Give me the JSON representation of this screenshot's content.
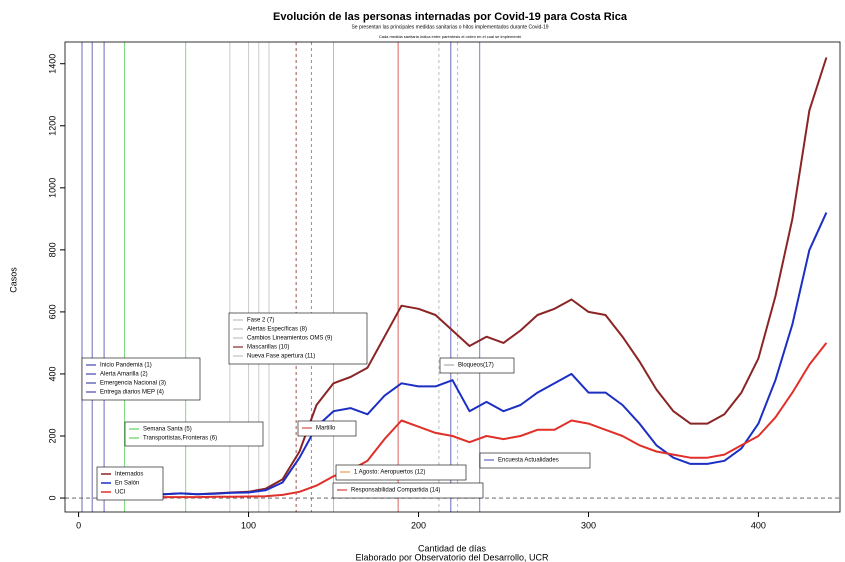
{
  "chart_data": {
    "type": "line",
    "title": "Evolución de las personas internadas por Covid-19 para Costa Rica",
    "subtitle": "Se presentan las principales medidas sanitarias o hitos implementados durante Covid-19",
    "note": "Cada medida sanitaria indica entre paréntesis el orden en el cual se implementó",
    "xlabel": "Cantidad de días",
    "caption": "Elaborado por Observatorio del Desarrollo, UCR",
    "ylabel": "Casos",
    "xlim": [
      -8,
      448
    ],
    "ylim": [
      -45,
      1470
    ],
    "xticks": [
      0,
      100,
      200,
      300,
      400
    ],
    "yticks": [
      0,
      200,
      400,
      600,
      800,
      1000,
      1200,
      1400
    ],
    "hline": 0,
    "x": [
      20,
      30,
      40,
      50,
      60,
      70,
      80,
      90,
      100,
      110,
      120,
      130,
      140,
      150,
      160,
      170,
      180,
      190,
      200,
      210,
      220,
      230,
      240,
      250,
      260,
      270,
      280,
      290,
      300,
      310,
      320,
      330,
      340,
      350,
      360,
      370,
      380,
      390,
      400,
      410,
      420,
      430,
      440
    ],
    "series": [
      {
        "name": "Internados",
        "color": "#8b2525",
        "values": [
          15,
          12,
          10,
          12,
          15,
          12,
          15,
          18,
          20,
          30,
          60,
          150,
          300,
          370,
          390,
          420,
          520,
          620,
          610,
          590,
          540,
          490,
          520,
          500,
          540,
          590,
          610,
          640,
          600,
          590,
          520,
          440,
          350,
          280,
          240,
          240,
          270,
          340,
          450,
          650,
          900,
          1250,
          1420
        ]
      },
      {
        "name": "En Salón",
        "color": "#1c2fc4",
        "values": [
          14,
          12,
          10,
          12,
          15,
          12,
          14,
          17,
          18,
          25,
          50,
          130,
          230,
          280,
          290,
          270,
          330,
          370,
          360,
          360,
          380,
          280,
          310,
          280,
          300,
          340,
          370,
          400,
          340,
          340,
          300,
          240,
          170,
          130,
          110,
          110,
          120,
          160,
          240,
          380,
          560,
          800,
          920
        ]
      },
      {
        "name": "UCI",
        "color": "#e0302a",
        "values": [
          3,
          3,
          3,
          3,
          3,
          3,
          4,
          4,
          5,
          6,
          10,
          20,
          40,
          70,
          90,
          120,
          190,
          250,
          230,
          210,
          200,
          180,
          200,
          190,
          200,
          220,
          220,
          250,
          240,
          220,
          200,
          170,
          150,
          140,
          130,
          130,
          140,
          170,
          200,
          260,
          340,
          430,
          500
        ]
      }
    ],
    "vlines": [
      {
        "x": 2,
        "color": "#6a6ac0",
        "dash": false
      },
      {
        "x": 8,
        "color": "#6a6ac0",
        "dash": false
      },
      {
        "x": 15,
        "color": "#6a6ac0",
        "dash": false
      },
      {
        "x": 27,
        "color": "#7fdc7f",
        "dash": false
      },
      {
        "x": 63,
        "color": "#7fdc7f",
        "dash": false
      },
      {
        "x": 89,
        "color": "#cccccc",
        "dash": false
      },
      {
        "x": 100,
        "color": "#cccccc",
        "dash": false
      },
      {
        "x": 106,
        "color": "#cccccc",
        "dash": false
      },
      {
        "x": 112,
        "color": "#cccccc",
        "dash": false
      },
      {
        "x": 128,
        "color": "#a05050",
        "dash": true
      },
      {
        "x": 137,
        "color": "#e07070",
        "dash": true
      },
      {
        "x": 150,
        "color": "#f0b070",
        "dash": false
      },
      {
        "x": 188,
        "color": "#e06060",
        "dash": false
      },
      {
        "x": 212,
        "color": "#bbbbbb",
        "dash": true
      },
      {
        "x": 219,
        "color": "#6a6ac0",
        "dash": false
      },
      {
        "x": 223,
        "color": "#bbbbbb",
        "dash": true
      },
      {
        "x": 236,
        "color": "#8080d0",
        "dash": false
      }
    ],
    "legends": [
      {
        "entries": [
          {
            "label": "Inicio Pandemia (1)",
            "color": "#6a6ac0"
          },
          {
            "label": "Alerta Amarilla (2)",
            "color": "#6a6ac0"
          },
          {
            "label": "Emergencia Nacional (3)",
            "color": "#6a6ac0"
          },
          {
            "label": "Entrega diarios MEP (4)",
            "color": "#6a6ac0"
          }
        ]
      },
      {
        "entries": [
          {
            "label": "Semana Santa (5)",
            "color": "#7fdc7f"
          },
          {
            "label": "Transportistas,Fronteras (6)",
            "color": "#7fdc7f"
          }
        ]
      },
      {
        "entries": [
          {
            "label": "Fase 2 (7)",
            "color": "#cccccc"
          },
          {
            "label": "Alertas Específicas (8)",
            "color": "#cccccc"
          },
          {
            "label": "Cambios Lineamientos OMS (9)",
            "color": "#cccccc"
          },
          {
            "label": "Mascarillas (10)",
            "color": "#a05050"
          },
          {
            "label": "Nueva Fase apertura (11)",
            "color": "#cccccc"
          }
        ]
      },
      {
        "entries": [
          {
            "label": "Martillo",
            "color": "#e07070"
          }
        ]
      },
      {
        "entries": [
          {
            "label": "1 Agosto: Aeropuertos (12)",
            "color": "#f0b070"
          }
        ]
      },
      {
        "entries": [
          {
            "label": "Responsabilidad Compartida (14)",
            "color": "#e06060"
          }
        ]
      },
      {
        "entries": [
          {
            "label": "Bloqueos(17)",
            "color": "#bbbbbb"
          }
        ]
      },
      {
        "entries": [
          {
            "label": "Encuesta Actualidades",
            "color": "#8080d0"
          }
        ]
      }
    ]
  }
}
